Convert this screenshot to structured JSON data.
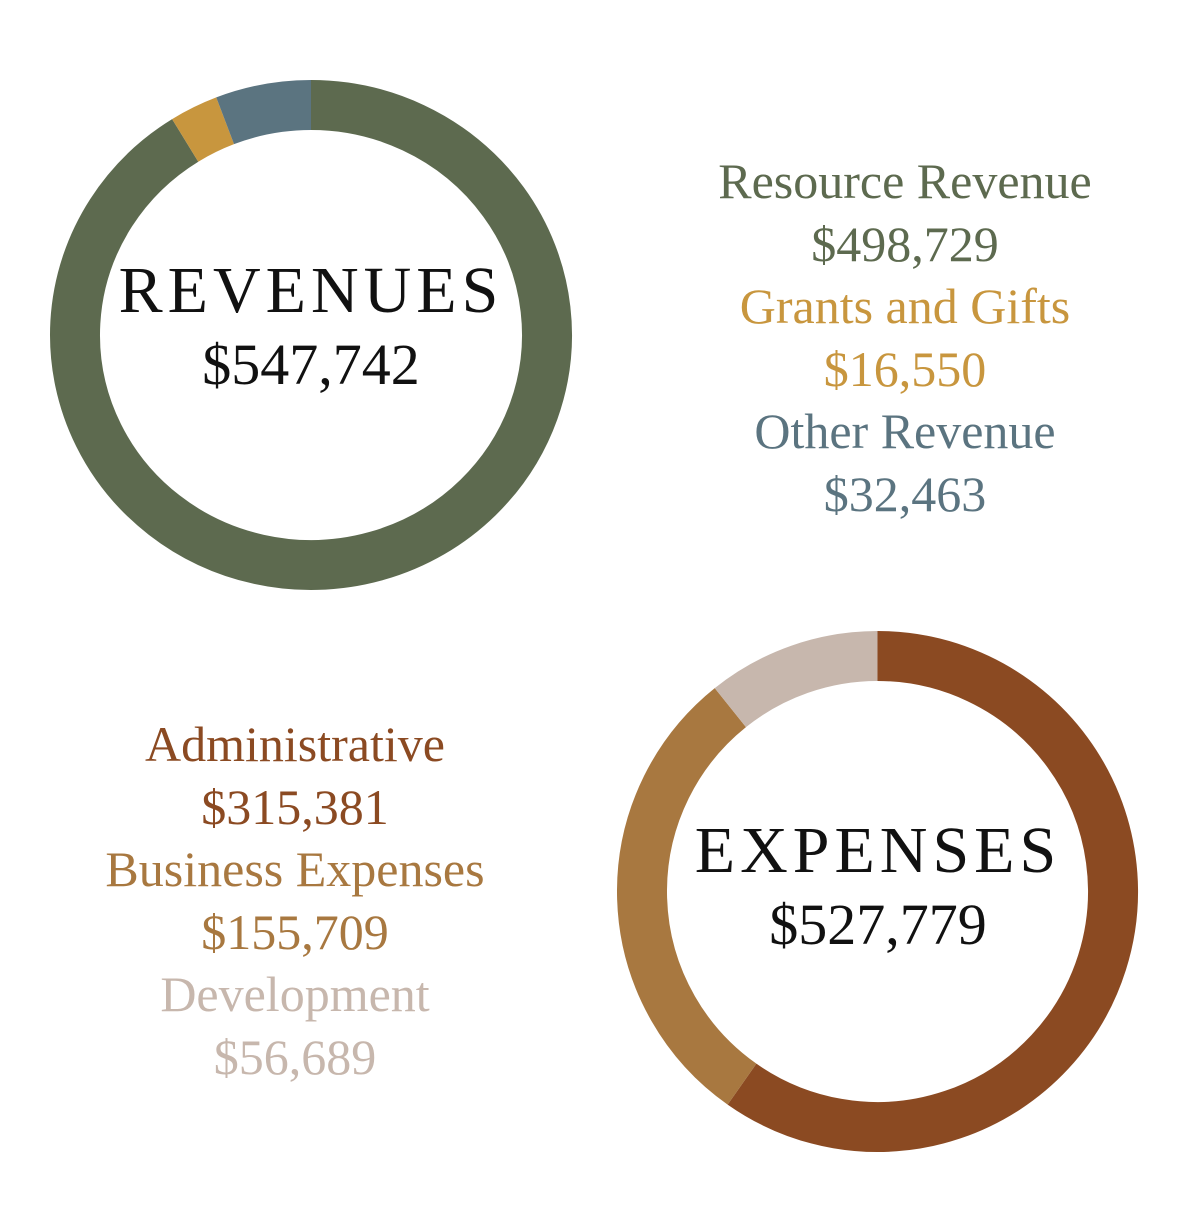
{
  "chart_data": [
    {
      "type": "pie",
      "title": "REVENUES",
      "total": "$547,742",
      "slices": [
        {
          "label": "Resource Revenue",
          "value": 498729,
          "value_text": "$498,729",
          "color": "#5d6a4f"
        },
        {
          "label": "Grants and Gifts",
          "value": 16550,
          "value_text": "$16,550",
          "color": "#c8963e"
        },
        {
          "label": "Other Revenue",
          "value": 32463,
          "value_text": "$32,463",
          "color": "#5b7480"
        }
      ],
      "start_angle_deg": 0,
      "direction": "clockwise",
      "legend_position": "right"
    },
    {
      "type": "pie",
      "title": "EXPENSES",
      "total": "$527,779",
      "slices": [
        {
          "label": "Administrative",
          "value": 315381,
          "value_text": "$315,381",
          "color": "#8b4a22"
        },
        {
          "label": "Business Expenses",
          "value": 155709,
          "value_text": "$155,709",
          "color": "#a87840"
        },
        {
          "label": "Development",
          "value": 56689,
          "value_text": "$56,689",
          "color": "#c7b7ad"
        }
      ],
      "start_angle_deg": 0,
      "direction": "clockwise",
      "legend_position": "left"
    }
  ]
}
